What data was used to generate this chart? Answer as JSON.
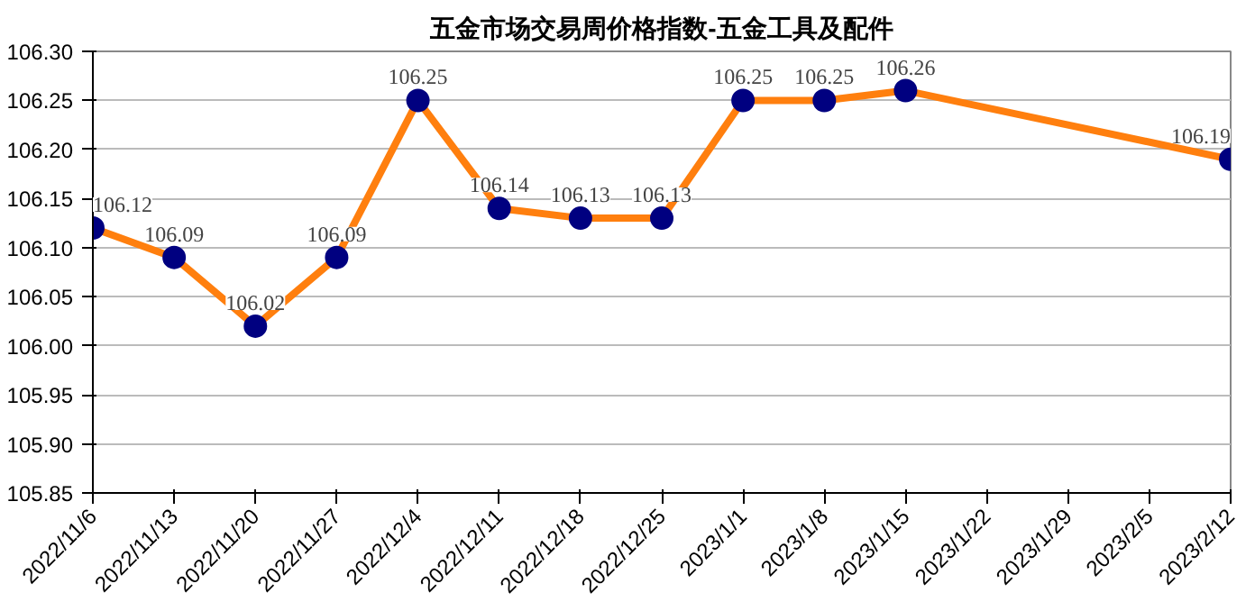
{
  "chart_data": {
    "type": "line",
    "title": "五金市场交易周价格指数-五金工具及配件",
    "x": [
      "2022-11-06",
      "2022-11-13",
      "2022-11-20",
      "2022-11-27",
      "2022-12-04",
      "2022-12-11",
      "2022-12-18",
      "2022-12-25",
      "2023-01-01",
      "2023-01-08",
      "2023-01-15",
      "2023-02-12"
    ],
    "series": [
      {
        "color": "#ff7f0e",
        "values": [
          106.12,
          106.09,
          106.02,
          106.09,
          106.25,
          106.14,
          106.13,
          106.13,
          106.25,
          106.25,
          106.26,
          106.19
        ]
      }
    ],
    "marker": "circle",
    "line_style": "solid",
    "data_labels": true,
    "grid": "y",
    "ylim": [
      105.85,
      106.3
    ],
    "yticks": [
      {
        "value": 105.85,
        "label": "105.85"
      },
      {
        "value": 105.9,
        "label": "105.90"
      },
      {
        "value": 105.95,
        "label": "105.95"
      },
      {
        "value": 106.0,
        "label": "106.00"
      },
      {
        "value": 106.05,
        "label": "106.05"
      },
      {
        "value": 106.1,
        "label": "106.10"
      },
      {
        "value": 106.15,
        "label": "106.15"
      },
      {
        "value": 106.2,
        "label": "106.20"
      },
      {
        "value": 106.25,
        "label": "106.25"
      },
      {
        "value": 106.3,
        "label": "106.30"
      }
    ],
    "xlim": [
      "2022-11-06",
      "2023-02-12"
    ],
    "xticks": [
      {
        "value": "2022-11-06",
        "label": "2022/11/6"
      },
      {
        "value": "2022-11-13",
        "label": "2022/11/13"
      },
      {
        "value": "2022-11-20",
        "label": "2022/11/20"
      },
      {
        "value": "2022-11-27",
        "label": "2022/11/27"
      },
      {
        "value": "2022-12-04",
        "label": "2022/12/4"
      },
      {
        "value": "2022-12-11",
        "label": "2022/12/11"
      },
      {
        "value": "2022-12-18",
        "label": "2022/12/18"
      },
      {
        "value": "2022-12-25",
        "label": "2022/12/25"
      },
      {
        "value": "2023-01-01",
        "label": "2023/1/1"
      },
      {
        "value": "2023-01-08",
        "label": "2023/1/8"
      },
      {
        "value": "2023-01-15",
        "label": "2023/1/15"
      },
      {
        "value": "2023-01-22",
        "label": "2023/1/22"
      },
      {
        "value": "2023-01-29",
        "label": "2023/1/29"
      },
      {
        "value": "2023-02-05",
        "label": "2023/2/5"
      },
      {
        "value": "2023-02-12",
        "label": "2023/2/12"
      }
    ]
  }
}
